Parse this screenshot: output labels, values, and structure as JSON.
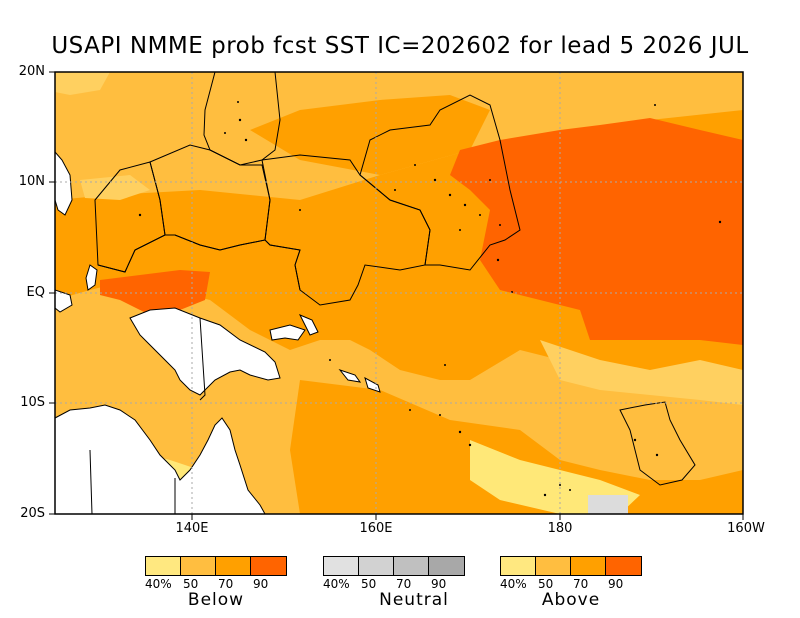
{
  "title": "USAPI NMME prob fcst SST IC=202602 for lead 5 2026 JUL",
  "y_axis_labels": [
    "20N",
    "10N",
    "EQ",
    "10S",
    "20S"
  ],
  "x_axis_labels": [
    "140E",
    "160E",
    "180",
    "160W"
  ],
  "colors": {
    "cat_40_50": "#ffbe3f",
    "cat_50_70": "#ffa000",
    "cat_70_90": "#ff6400",
    "below_40": "#ffe878",
    "land": "#ffffff",
    "neutral": "#cccccc"
  },
  "legend": [
    {
      "category": "Below",
      "tick_labels": [
        "40%",
        "50",
        "70",
        "90"
      ],
      "colors": [
        "#ffe880",
        "#ffbe40",
        "#ffa000",
        "#ff6400"
      ]
    },
    {
      "category": "Neutral",
      "tick_labels": [
        "40%",
        "50",
        "70",
        "90"
      ],
      "colors": [
        "#e1e1e1",
        "#d2d2d2",
        "#c0c0c0",
        "#a8a8a8"
      ]
    },
    {
      "category": "Above",
      "tick_labels": [
        "40%",
        "50",
        "70",
        "90"
      ],
      "colors": [
        "#ffe880",
        "#ffbe40",
        "#ffa000",
        "#ff6400"
      ]
    }
  ]
}
